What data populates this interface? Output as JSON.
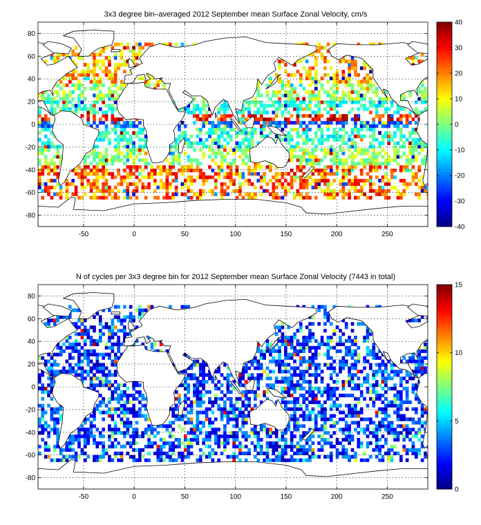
{
  "chart_data": [
    {
      "type": "heatmap",
      "title": "3x3 degree bin–averaged 2012 September mean Surface Zonal Velocity, cm/s",
      "xlabel": "",
      "ylabel": "",
      "xlim": [
        -95,
        290
      ],
      "ylim": [
        -90,
        90
      ],
      "xticks": [
        -50,
        0,
        50,
        100,
        150,
        200,
        250
      ],
      "yticks": [
        80,
        60,
        40,
        20,
        0,
        -20,
        -40,
        -60,
        -80
      ],
      "colorbar": {
        "min": -40,
        "max": 40,
        "ticks": [
          40,
          30,
          20,
          10,
          0,
          -10,
          -20,
          -30,
          -40
        ],
        "colormap": "jet"
      },
      "bin_size_deg": 3,
      "grid": true
    },
    {
      "type": "heatmap",
      "title": "N of cycles per 3x3 degree bin for 2012 September mean Surface Zonal Velocity (7443 in total)",
      "xlabel": "",
      "ylabel": "",
      "xlim": [
        -95,
        290
      ],
      "ylim": [
        -90,
        90
      ],
      "xticks": [
        -50,
        0,
        50,
        100,
        150,
        200,
        250
      ],
      "yticks": [
        80,
        60,
        40,
        20,
        0,
        -20,
        -40,
        -60,
        -80
      ],
      "colorbar": {
        "min": 0,
        "max": 15,
        "ticks": [
          15,
          10,
          5,
          0
        ],
        "colormap": "jet"
      },
      "bin_size_deg": 3,
      "total_cycles": 7443,
      "grid": true
    }
  ]
}
